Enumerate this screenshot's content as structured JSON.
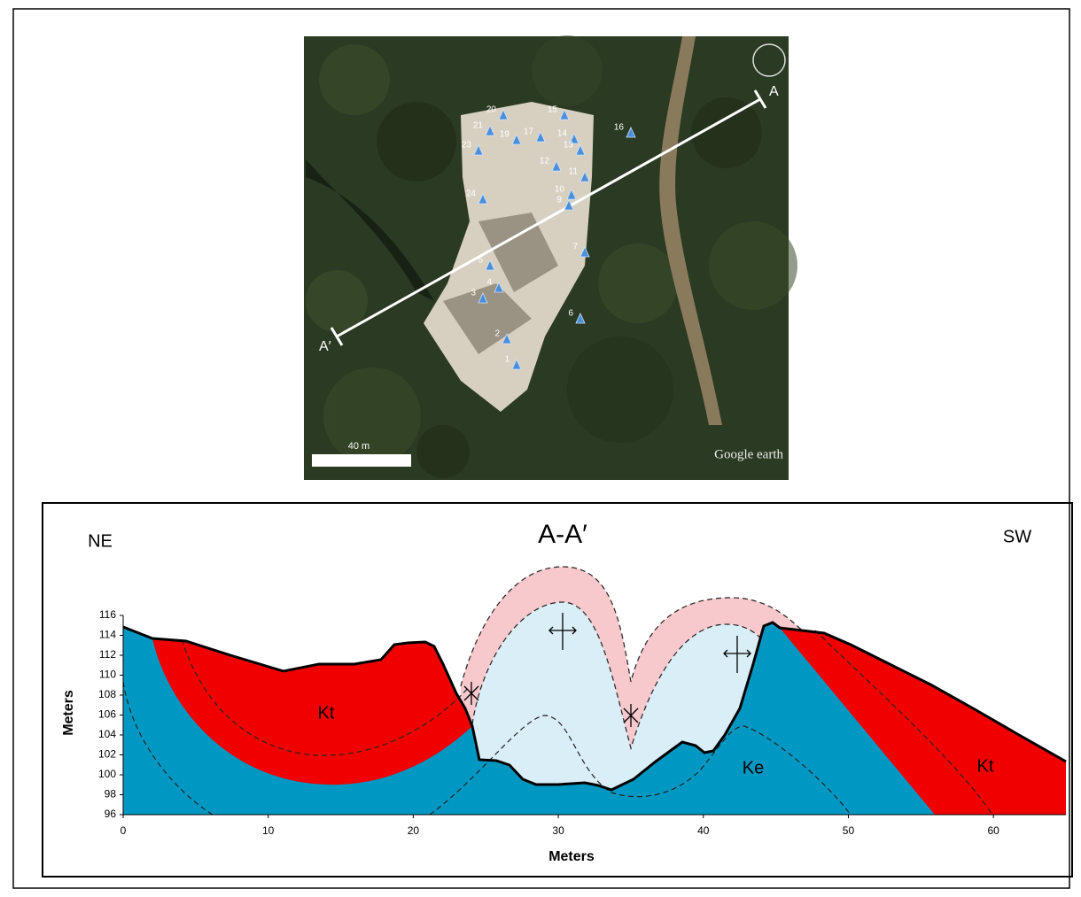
{
  "map": {
    "markers": [
      "20",
      "15",
      "21",
      "19",
      "17",
      "14",
      "16",
      "23",
      "13",
      "12",
      "11",
      "10",
      "9",
      "24",
      "7",
      "5",
      "4",
      "3",
      "6",
      "2",
      "1"
    ],
    "section_start": "A",
    "section_end": "A′",
    "scale_bar": "40 m",
    "watermark": "Google earth"
  },
  "cross_section": {
    "title": "A-A′",
    "left_direction": "NE",
    "right_direction": "SW",
    "x_label": "Meters",
    "y_label": "Meters",
    "xlim": [
      0,
      65
    ],
    "ylim": [
      96,
      116
    ],
    "xticks": [
      0,
      10,
      20,
      30,
      40,
      50,
      60
    ],
    "yticks": [
      96,
      98,
      100,
      102,
      104,
      106,
      108,
      110,
      112,
      114,
      116
    ],
    "units": [
      "Kt",
      "Ke",
      "Kt"
    ]
  }
}
